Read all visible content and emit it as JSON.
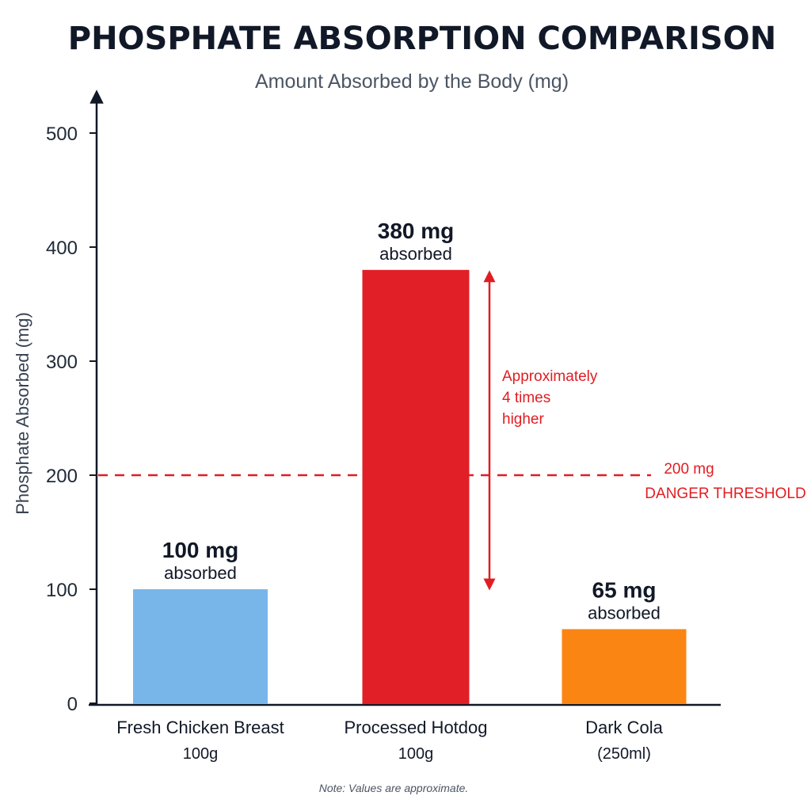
{
  "chart_data": {
    "type": "bar",
    "title": "PHOSPHATE ABSORPTION COMPARISON",
    "subtitle": "Amount Absorbed by the Body (mg)",
    "ylabel": "Phosphate Absorbed (mg)",
    "xlabel": "",
    "ylim": [
      0,
      500
    ],
    "yticks": [
      0,
      100,
      200,
      300,
      400,
      500
    ],
    "grid": false,
    "categories": [
      {
        "name": "Fresh Chicken Breast",
        "sub": "100g"
      },
      {
        "name": "Processed Hotdog",
        "sub": "100g"
      },
      {
        "name": "Dark Cola",
        "sub": "(250ml)"
      }
    ],
    "values": [
      100,
      380,
      65
    ],
    "colors": [
      "#78b6ea",
      "#e01f26",
      "#fb8513"
    ],
    "data_labels": [
      {
        "value": "100 mg",
        "unit": "absorbed"
      },
      {
        "value": "380 mg",
        "unit": "absorbed"
      },
      {
        "value": "65 mg",
        "unit": "absorbed"
      }
    ],
    "threshold": {
      "value": 200,
      "label_value": "200 mg",
      "label_text": "DANGER THRESHOLD",
      "color": "#e11d22",
      "style": "dashed"
    },
    "comparison": {
      "from_value": 100,
      "to_value": 380,
      "lines": [
        "Approximately",
        "4 times",
        "higher"
      ],
      "color": "#e11d22"
    },
    "note": "Note: Values are approximate."
  }
}
